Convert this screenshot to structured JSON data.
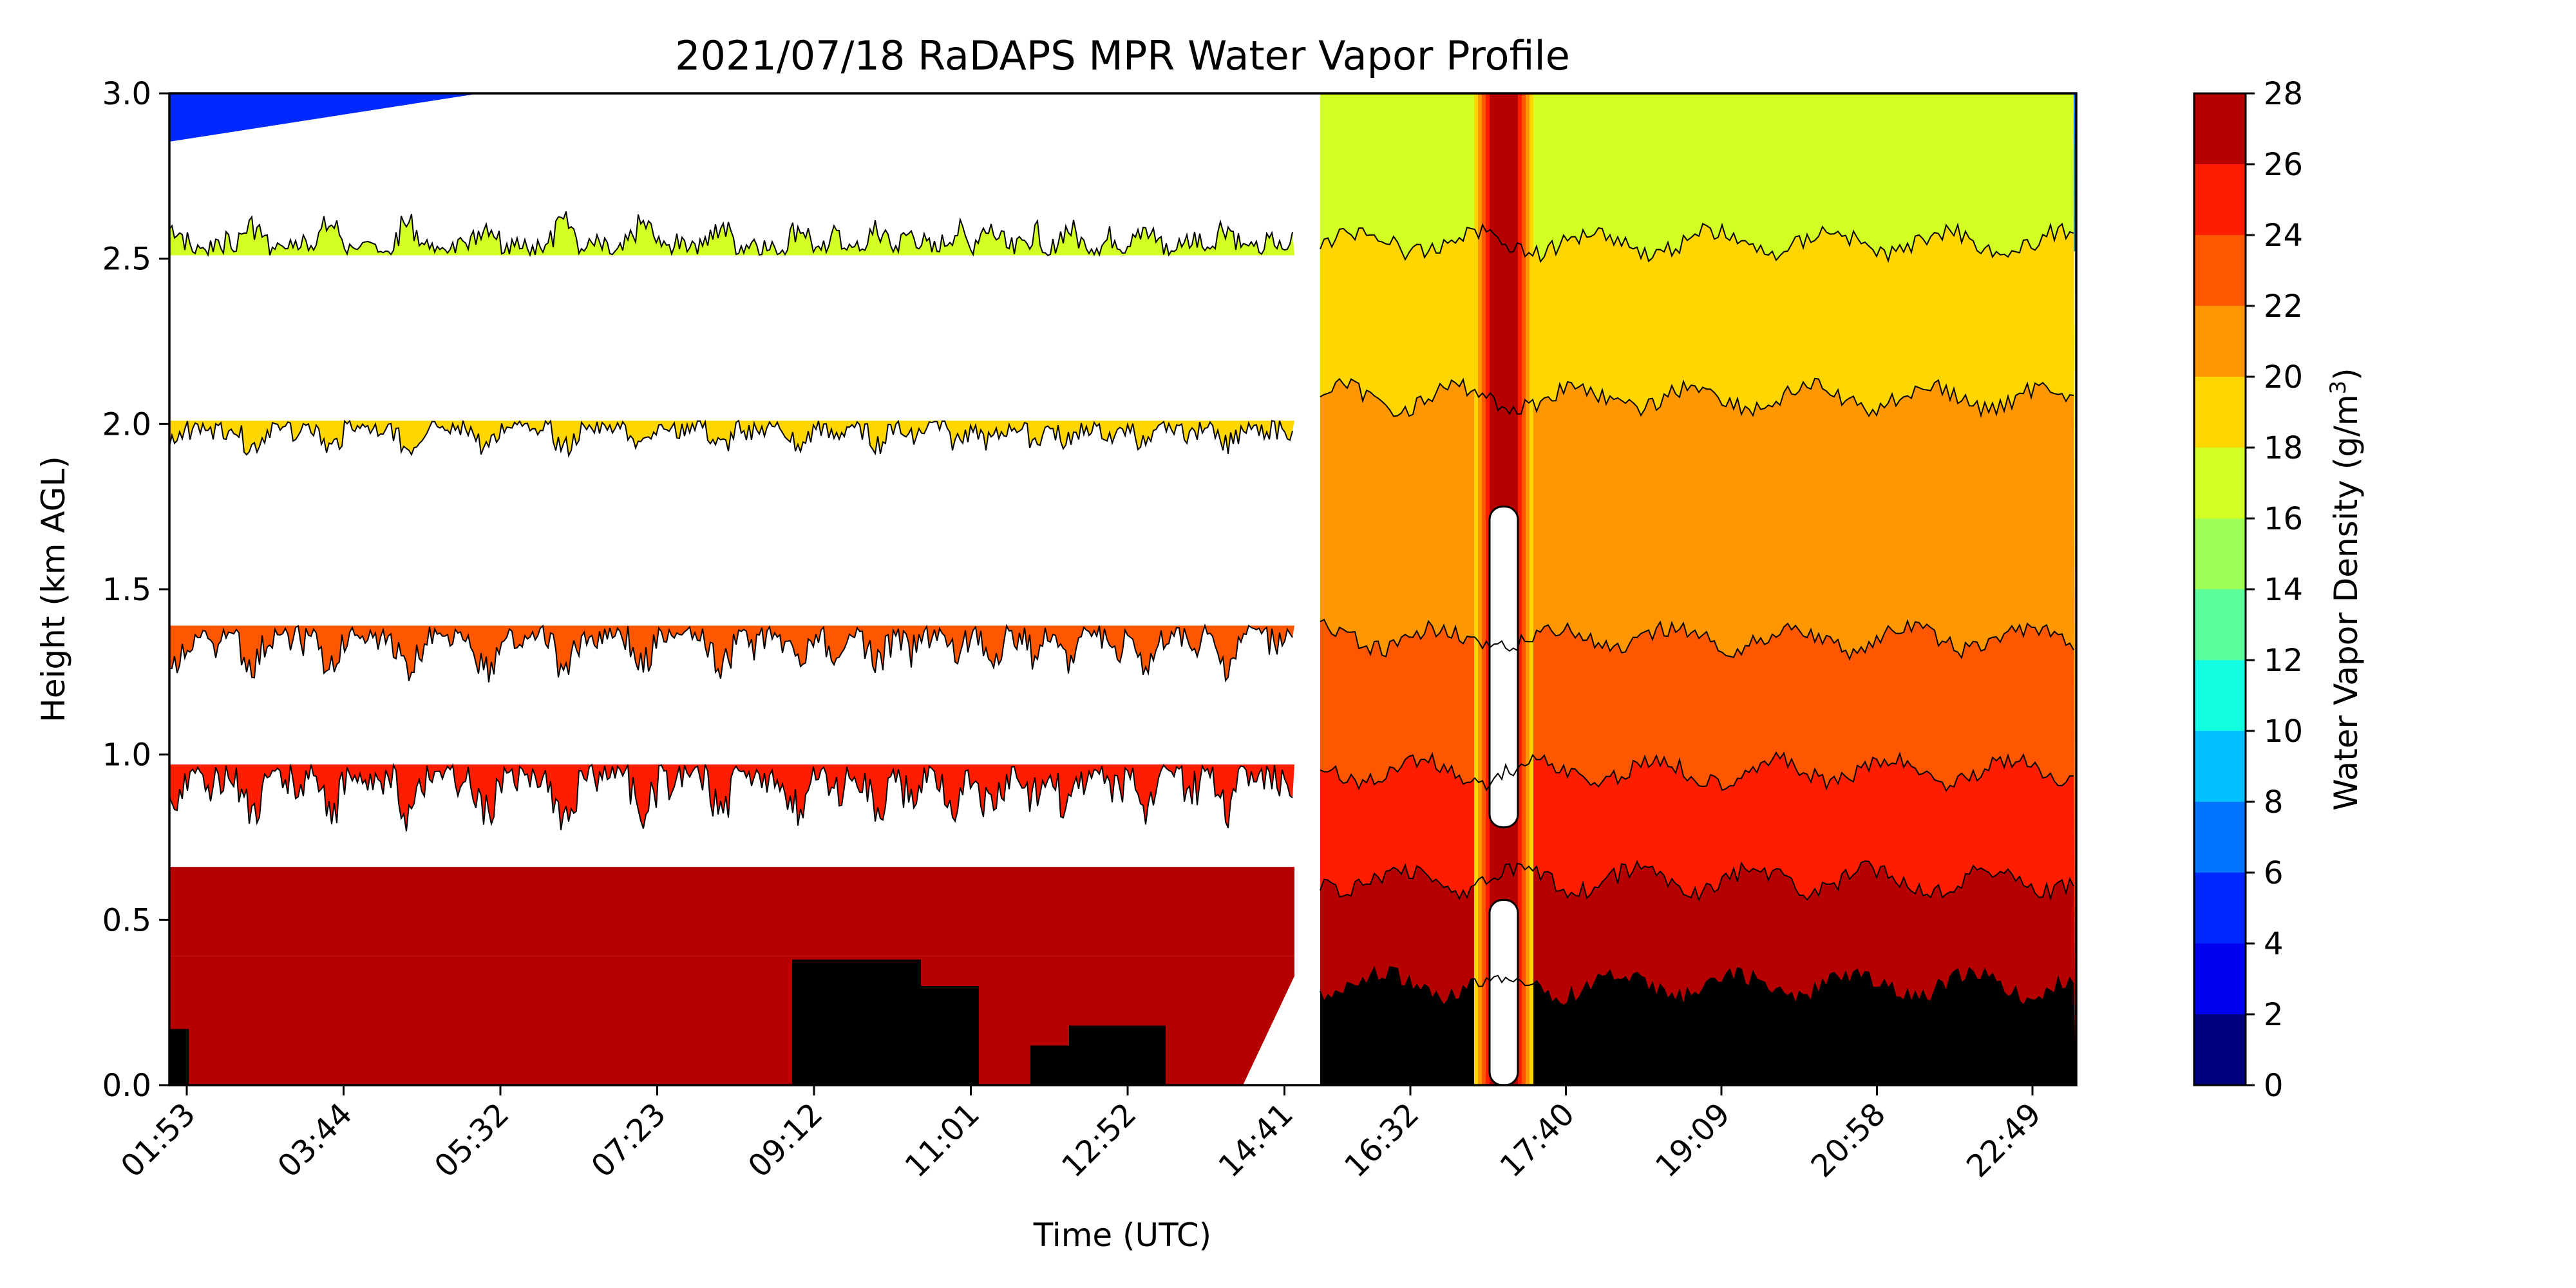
{
  "chart_data": {
    "type": "heatmap",
    "title": "2021/07/18 RaDAPS MPR Water Vapor Profile",
    "xlabel": "Time (UTC)",
    "ylabel": "Height (km AGL)",
    "colorbar_label": "Water Vapor Density (g/m",
    "colorbar_label_sup": "3",
    "colorbar_label_end": ")",
    "x_tick_labels": [
      "01:53",
      "03:44",
      "05:32",
      "07:23",
      "09:12",
      "11:01",
      "12:52",
      "14:41",
      "16:32",
      "17:40",
      "19:09",
      "20:58",
      "22:49"
    ],
    "y_ticks": [
      0.0,
      0.5,
      1.0,
      1.5,
      2.0,
      2.5,
      3.0
    ],
    "y_tick_labels": [
      "0.0",
      "0.5",
      "1.0",
      "1.5",
      "2.0",
      "2.5",
      "3.0"
    ],
    "ylim": [
      0,
      3
    ],
    "colorbar_ticks": [
      0,
      2,
      4,
      6,
      8,
      10,
      12,
      14,
      16,
      18,
      20,
      22,
      24,
      26,
      28
    ],
    "color_levels": [
      {
        "min": 0,
        "max": 2,
        "color": "#00007f"
      },
      {
        "min": 2,
        "max": 4,
        "color": "#0000f1"
      },
      {
        "min": 4,
        "max": 6,
        "color": "#0029ff"
      },
      {
        "min": 6,
        "max": 8,
        "color": "#0075ff"
      },
      {
        "min": 8,
        "max": 10,
        "color": "#00c0ff"
      },
      {
        "min": 10,
        "max": 12,
        "color": "#13ffe3"
      },
      {
        "min": 12,
        "max": 14,
        "color": "#5bff9c"
      },
      {
        "min": 14,
        "max": 16,
        "color": "#a0ff56"
      },
      {
        "min": 16,
        "max": 18,
        "color": "#d2ff24"
      },
      {
        "min": 18,
        "max": 20,
        "color": "#ffd600"
      },
      {
        "min": 20,
        "max": 22,
        "color": "#ff9800"
      },
      {
        "min": 22,
        "max": 24,
        "color": "#ff5700"
      },
      {
        "min": 24,
        "max": 26,
        "color": "#ff1d00"
      },
      {
        "min": 26,
        "max": 28,
        "color": "#b60000"
      }
    ],
    "legend_placement": "right colorbar",
    "grid": false,
    "gap_after_tick": "14:41"
  }
}
